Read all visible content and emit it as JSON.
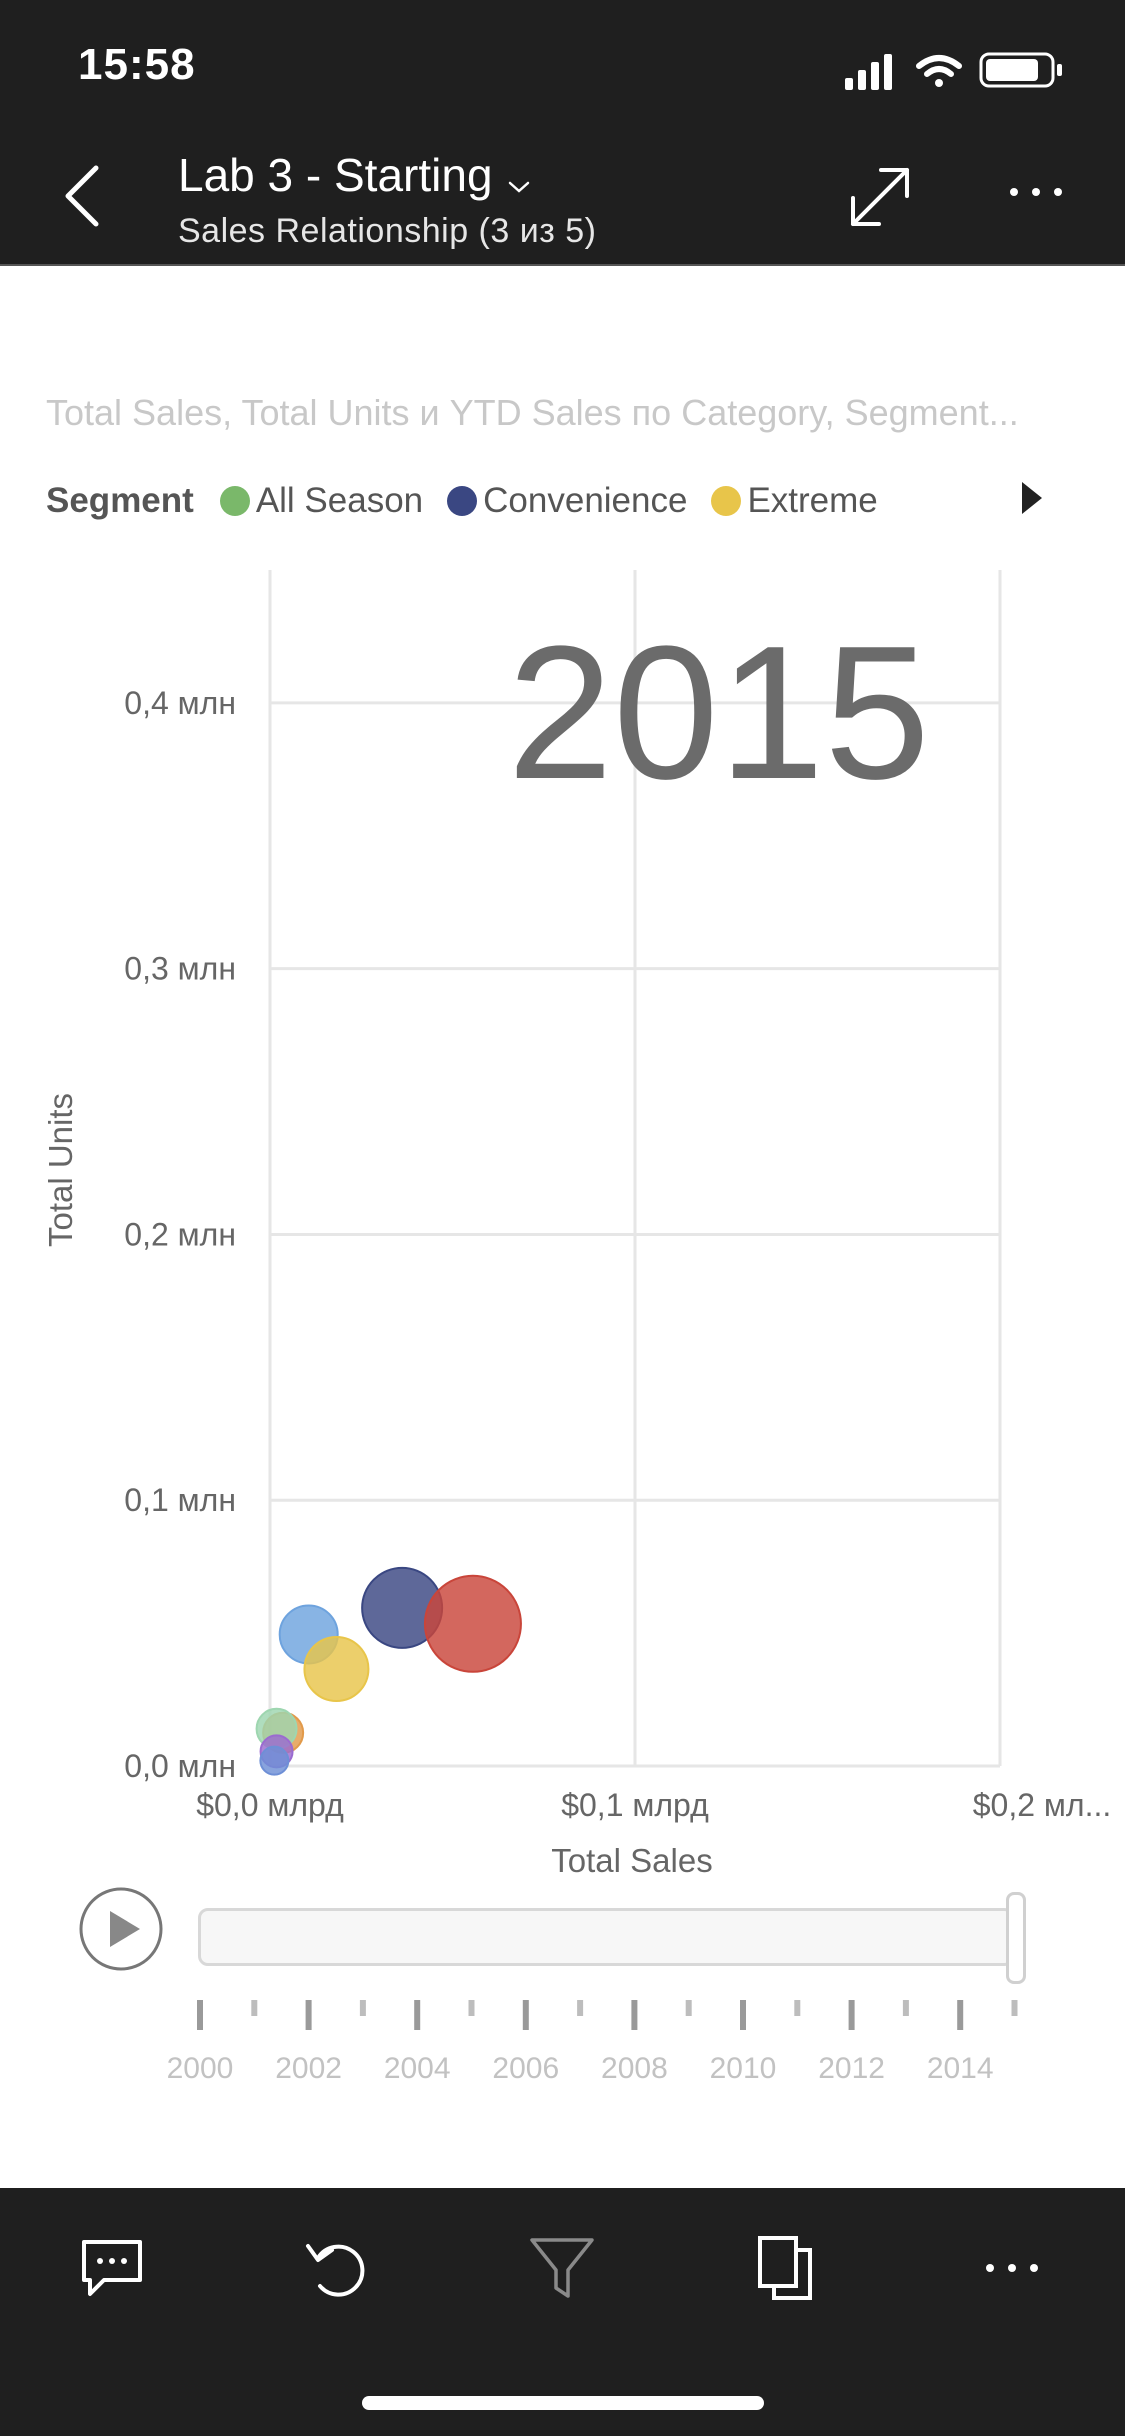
{
  "status_bar": {
    "time": "15:58"
  },
  "header": {
    "title": "Lab 3 - Starting",
    "subtitle": "Sales Relationship (3 из 5)"
  },
  "visual": {
    "title": "Total Sales, Total Units и YTD Sales по Category, Segment...",
    "legend": {
      "label": "Segment",
      "items": [
        {
          "name": "All Season",
          "color": "#7ab86a"
        },
        {
          "name": "Convenience",
          "color": "#3a4782"
        },
        {
          "name": "Extreme",
          "color": "#e8c54a"
        }
      ]
    },
    "play_year": "2015"
  },
  "chart_data": {
    "type": "scatter",
    "xlabel": "Total Sales",
    "ylabel": "Total Units",
    "x_tick_labels": [
      "$0,0 млрд",
      "$0,1 млрд",
      "$0,2 мл..."
    ],
    "y_tick_labels": [
      "0,0 млн",
      "0,1 млн",
      "0,2 млн",
      "0,3 млн",
      "0,4 млн"
    ],
    "xlim": [
      0,
      0.2
    ],
    "ylim": [
      0,
      0.45
    ],
    "points": [
      {
        "x": 0.0036,
        "y": 0.0125,
        "r": 20,
        "color": "#e29a4a"
      },
      {
        "x": 0.0018,
        "y": 0.014,
        "r": 20,
        "color": "#9ed6b0"
      },
      {
        "x": 0.0018,
        "y": 0.0055,
        "r": 16,
        "color": "#9b6bd0"
      },
      {
        "x": 0.0012,
        "y": 0.002,
        "r": 14,
        "color": "#6e8fd6"
      },
      {
        "x": 0.0106,
        "y": 0.0495,
        "r": 29,
        "color": "#6ea3de"
      },
      {
        "x": 0.0182,
        "y": 0.0365,
        "r": 32,
        "color": "#e8c54a"
      },
      {
        "x": 0.0362,
        "y": 0.0595,
        "r": 40,
        "color": "#3a4782"
      },
      {
        "x": 0.0556,
        "y": 0.0535,
        "r": 48,
        "color": "#c9453a"
      }
    ],
    "grid": true
  },
  "play_axis": {
    "years": [
      "2000",
      "2002",
      "2004",
      "2006",
      "2008",
      "2010",
      "2012",
      "2014"
    ],
    "value": 1.0
  }
}
